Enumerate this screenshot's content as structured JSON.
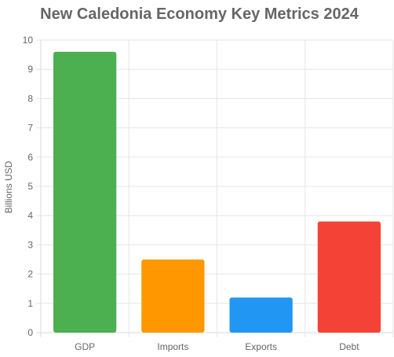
{
  "chart_data": {
    "type": "bar",
    "title": "New Caledonia Economy Key Metrics 2024",
    "xlabel": "",
    "ylabel": "Billions USD",
    "categories": [
      "GDP",
      "Imports",
      "Exports",
      "Debt"
    ],
    "values": [
      9.6,
      2.5,
      1.2,
      3.8
    ],
    "colors": [
      "#4caf50",
      "#ff9800",
      "#2196f3",
      "#f44336"
    ],
    "ylim": [
      0,
      10
    ],
    "yticks": [
      "0",
      "1",
      "2",
      "3",
      "4",
      "5",
      "6",
      "7",
      "8",
      "9",
      "10"
    ],
    "grid": true,
    "legend": "none"
  }
}
